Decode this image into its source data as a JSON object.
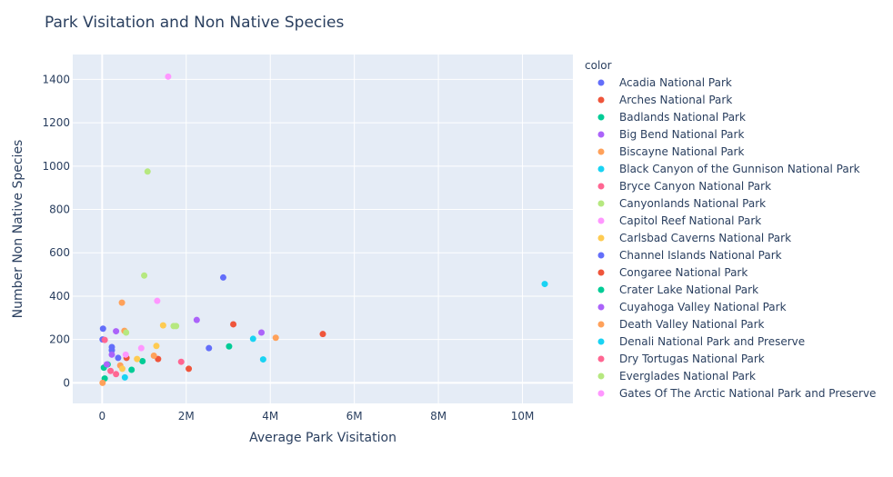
{
  "chart_data": {
    "type": "scatter",
    "title": "Park Visitation and Non Native Species",
    "xlabel": "Average Park Visitation",
    "ylabel": "Number Non Native Species",
    "xlim": [
      -700000,
      11200000
    ],
    "ylim": [
      -95,
      1515
    ],
    "xticks": [
      0,
      2000000,
      4000000,
      6000000,
      8000000,
      10000000
    ],
    "xtick_labels": [
      "0",
      "2M",
      "4M",
      "6M",
      "8M",
      "10M"
    ],
    "yticks": [
      0,
      200,
      400,
      600,
      800,
      1000,
      1200,
      1400
    ],
    "ytick_labels": [
      "0",
      "200",
      "400",
      "600",
      "800",
      "1000",
      "1200",
      "1400"
    ],
    "grid": true,
    "legend": {
      "title": "color",
      "placement": "right",
      "entries": [
        {
          "name": "Acadia National Park",
          "color": "#636efa"
        },
        {
          "name": "Arches National Park",
          "color": "#EF553B"
        },
        {
          "name": "Badlands National Park",
          "color": "#00cc96"
        },
        {
          "name": "Big Bend National Park",
          "color": "#ab63fa"
        },
        {
          "name": "Biscayne National Park",
          "color": "#FFA15A"
        },
        {
          "name": "Black Canyon of the Gunnison National Park",
          "color": "#19d3f3"
        },
        {
          "name": "Bryce Canyon National Park",
          "color": "#FF6692"
        },
        {
          "name": "Canyonlands National Park",
          "color": "#B6E880"
        },
        {
          "name": "Capitol Reef National Park",
          "color": "#FF97FF"
        },
        {
          "name": "Carlsbad Caverns National Park",
          "color": "#FECB52"
        },
        {
          "name": "Channel Islands National Park",
          "color": "#636efa"
        },
        {
          "name": "Congaree National Park",
          "color": "#EF553B"
        },
        {
          "name": "Crater Lake National Park",
          "color": "#00cc96"
        },
        {
          "name": "Cuyahoga Valley National Park",
          "color": "#ab63fa"
        },
        {
          "name": "Death Valley National Park",
          "color": "#FFA15A"
        },
        {
          "name": "Denali National Park and Preserve",
          "color": "#19d3f3"
        },
        {
          "name": "Dry Tortugas National Park",
          "color": "#FF6692"
        },
        {
          "name": "Everglades National Park",
          "color": "#B6E880"
        },
        {
          "name": "Gates Of The Arctic National Park and Preserve",
          "color": "#FF97FF"
        }
      ]
    },
    "points": [
      {
        "x": 2880000,
        "y": 486,
        "color": "#636efa"
      },
      {
        "x": 2540000,
        "y": 160,
        "color": "#636efa"
      },
      {
        "x": 20000,
        "y": 250,
        "color": "#636efa"
      },
      {
        "x": 10000,
        "y": 200,
        "color": "#636efa"
      },
      {
        "x": 230000,
        "y": 165,
        "color": "#636efa"
      },
      {
        "x": 230000,
        "y": 150,
        "color": "#636efa"
      },
      {
        "x": 380000,
        "y": 115,
        "color": "#636efa"
      },
      {
        "x": 5250000,
        "y": 225,
        "color": "#EF553B"
      },
      {
        "x": 3120000,
        "y": 270,
        "color": "#EF553B"
      },
      {
        "x": 2060000,
        "y": 65,
        "color": "#EF553B"
      },
      {
        "x": 1330000,
        "y": 110,
        "color": "#EF553B"
      },
      {
        "x": 580000,
        "y": 115,
        "color": "#EF553B"
      },
      {
        "x": 3020000,
        "y": 168,
        "color": "#00cc96"
      },
      {
        "x": 960000,
        "y": 100,
        "color": "#00cc96"
      },
      {
        "x": 700000,
        "y": 60,
        "color": "#00cc96"
      },
      {
        "x": 130000,
        "y": 85,
        "color": "#00cc96"
      },
      {
        "x": 40000,
        "y": 70,
        "color": "#00cc96"
      },
      {
        "x": 60000,
        "y": 20,
        "color": "#00cc96"
      },
      {
        "x": 2250000,
        "y": 290,
        "color": "#ab63fa"
      },
      {
        "x": 3790000,
        "y": 232,
        "color": "#ab63fa"
      },
      {
        "x": 330000,
        "y": 238,
        "color": "#ab63fa"
      },
      {
        "x": 230000,
        "y": 130,
        "color": "#ab63fa"
      },
      {
        "x": 110000,
        "y": 85,
        "color": "#ab63fa"
      },
      {
        "x": 4130000,
        "y": 208,
        "color": "#FFA15A"
      },
      {
        "x": 470000,
        "y": 370,
        "color": "#FFA15A"
      },
      {
        "x": 530000,
        "y": 240,
        "color": "#FFA15A"
      },
      {
        "x": 1230000,
        "y": 125,
        "color": "#FFA15A"
      },
      {
        "x": 430000,
        "y": 80,
        "color": "#FFA15A"
      },
      {
        "x": 10000,
        "y": 0,
        "color": "#FFA15A"
      },
      {
        "x": 10530000,
        "y": 456,
        "color": "#19d3f3"
      },
      {
        "x": 3590000,
        "y": 203,
        "color": "#19d3f3"
      },
      {
        "x": 3830000,
        "y": 108,
        "color": "#19d3f3"
      },
      {
        "x": 540000,
        "y": 25,
        "color": "#19d3f3"
      },
      {
        "x": 1880000,
        "y": 97,
        "color": "#FF6692"
      },
      {
        "x": 200000,
        "y": 55,
        "color": "#FF6692"
      },
      {
        "x": 330000,
        "y": 40,
        "color": "#FF6692"
      },
      {
        "x": 60000,
        "y": 198,
        "color": "#FF6692"
      },
      {
        "x": 1080000,
        "y": 975,
        "color": "#B6E880"
      },
      {
        "x": 1000000,
        "y": 495,
        "color": "#B6E880"
      },
      {
        "x": 1700000,
        "y": 262,
        "color": "#B6E880"
      },
      {
        "x": 1760000,
        "y": 262,
        "color": "#B6E880"
      },
      {
        "x": 570000,
        "y": 232,
        "color": "#B6E880"
      },
      {
        "x": 1570000,
        "y": 1413,
        "color": "#FF97FF"
      },
      {
        "x": 1310000,
        "y": 378,
        "color": "#FF97FF"
      },
      {
        "x": 930000,
        "y": 160,
        "color": "#FF97FF"
      },
      {
        "x": 560000,
        "y": 130,
        "color": "#FF97FF"
      },
      {
        "x": 1450000,
        "y": 265,
        "color": "#FECB52"
      },
      {
        "x": 1290000,
        "y": 170,
        "color": "#FECB52"
      },
      {
        "x": 830000,
        "y": 110,
        "color": "#FECB52"
      },
      {
        "x": 480000,
        "y": 65,
        "color": "#FECB52"
      }
    ]
  }
}
